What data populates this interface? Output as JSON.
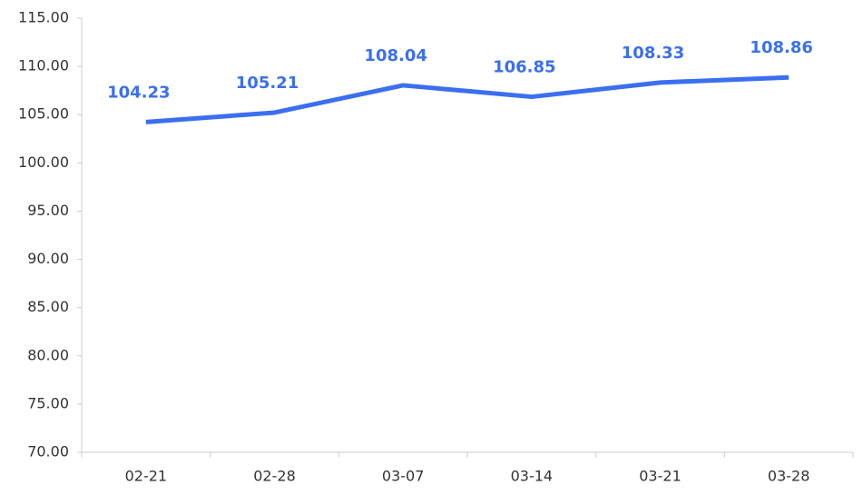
{
  "chart_data": {
    "type": "line",
    "categories": [
      "02-21",
      "02-28",
      "03-07",
      "03-14",
      "03-21",
      "03-28"
    ],
    "series": [
      {
        "color": "#3b6ff0",
        "values": [
          104.23,
          105.21,
          108.04,
          106.85,
          108.33,
          108.86
        ]
      }
    ],
    "ylim": [
      70,
      115
    ],
    "yticks": [
      {
        "value": 70,
        "label": "70.00"
      },
      {
        "value": 75,
        "label": "75.00"
      },
      {
        "value": 80,
        "label": "80.00"
      },
      {
        "value": 85,
        "label": "85.00"
      },
      {
        "value": 90,
        "label": "90.00"
      },
      {
        "value": 95,
        "label": "95.00"
      },
      {
        "value": 100,
        "label": "100.00"
      },
      {
        "value": 105,
        "label": "105.00"
      },
      {
        "value": 110,
        "label": "110.00"
      },
      {
        "value": 115,
        "label": "115.00"
      }
    ],
    "grid": false
  }
}
